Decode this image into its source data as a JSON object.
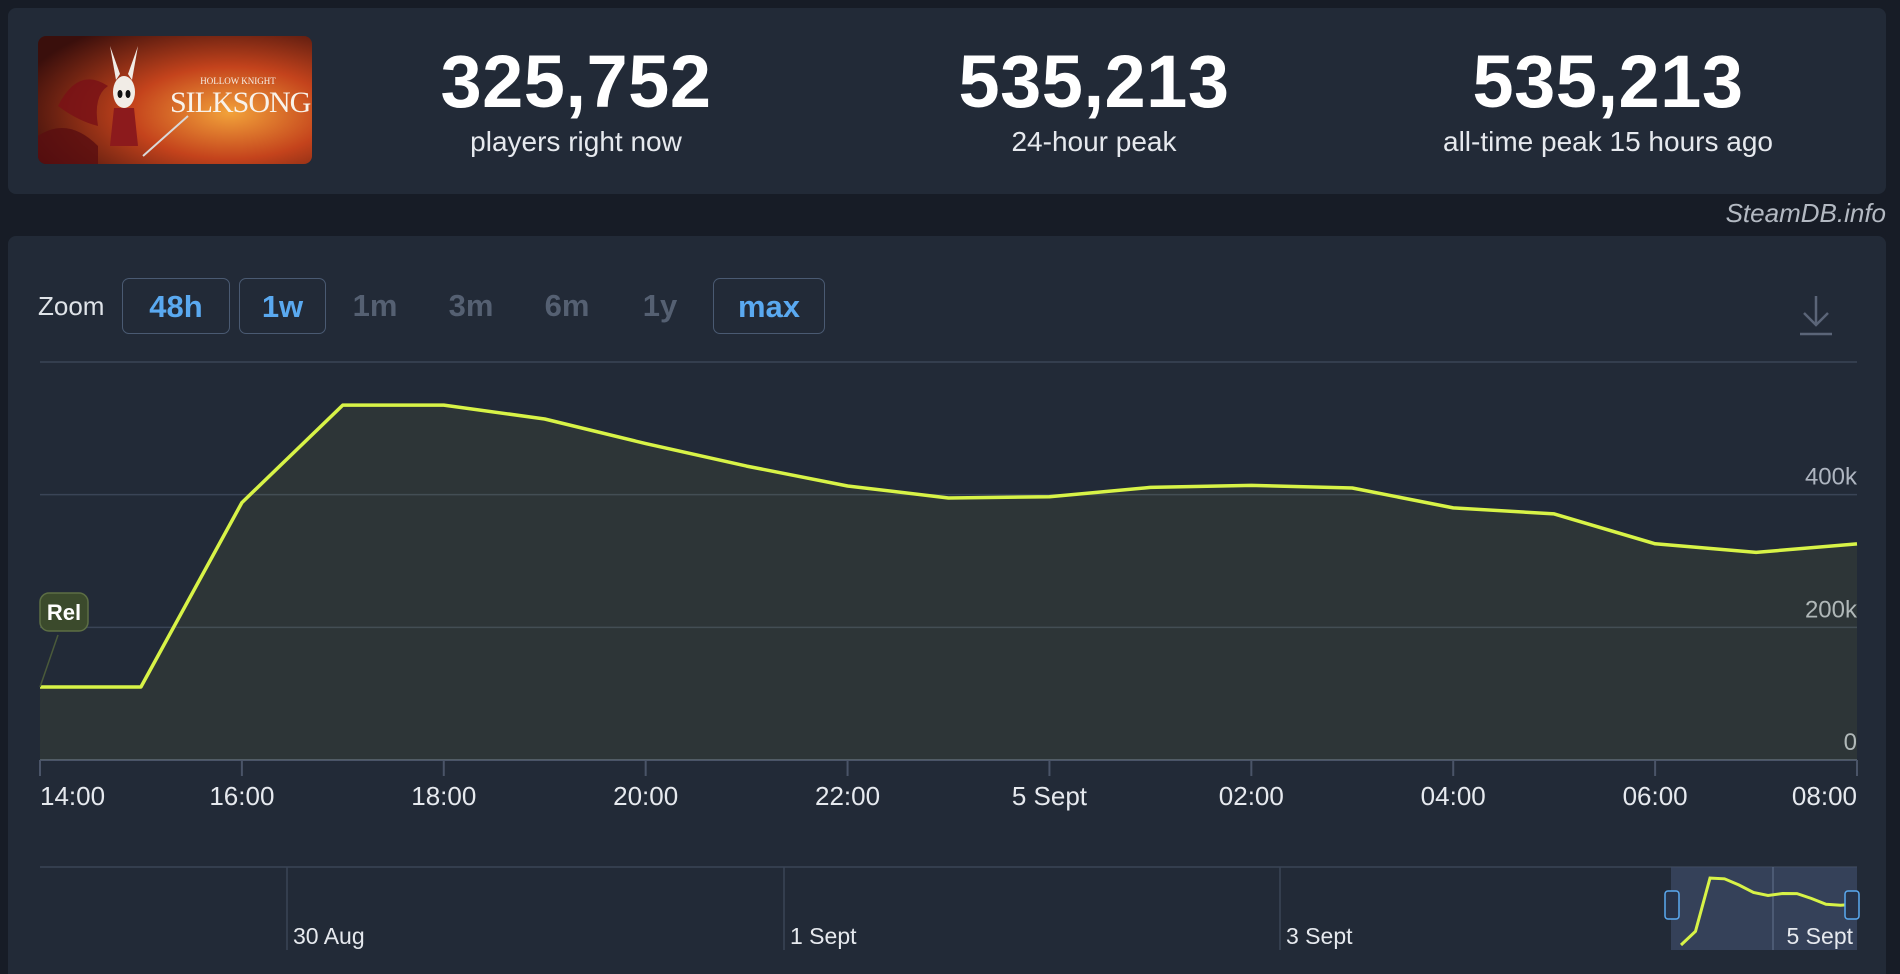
{
  "game": {
    "logo_title": "SILKSONG",
    "logo_subtitle": "HOLLOW KNIGHT"
  },
  "stats": [
    {
      "value": "325,752",
      "label": "players right now"
    },
    {
      "value": "535,213",
      "label": "24-hour peak"
    },
    {
      "value": "535,213",
      "label": "all-time peak 15 hours ago"
    }
  ],
  "credit": "SteamDB.info",
  "zoom": {
    "label": "Zoom",
    "buttons": [
      {
        "label": "48h",
        "active": true
      },
      {
        "label": "1w",
        "active": true
      },
      {
        "label": "1m",
        "active": false
      },
      {
        "label": "3m",
        "active": false
      },
      {
        "label": "6m",
        "active": false
      },
      {
        "label": "1y",
        "active": false
      },
      {
        "label": "max",
        "active": true
      }
    ]
  },
  "icons": {
    "download": "download-icon"
  },
  "colors": {
    "line": "#d8f347",
    "accent": "#5aa9f0",
    "background": "#171c26",
    "panel": "#222a37"
  },
  "chart_data": {
    "type": "line",
    "x": [
      "14:00",
      "15:00",
      "16:00",
      "17:00",
      "18:00",
      "19:00",
      "20:00",
      "21:00",
      "22:00",
      "23:00",
      "5 Sept",
      "01:00",
      "02:00",
      "03:00",
      "04:00",
      "05:00",
      "06:00",
      "07:00",
      "08:00"
    ],
    "series": [
      {
        "values": [
          110000,
          110000,
          388000,
          535000,
          535000,
          514000,
          477000,
          443000,
          413000,
          395000,
          397000,
          411000,
          414000,
          410000,
          380000,
          371000,
          326000,
          313000,
          325752
        ]
      }
    ],
    "xticks": [
      "14:00",
      "16:00",
      "18:00",
      "20:00",
      "22:00",
      "5 Sept",
      "02:00",
      "04:00",
      "06:00",
      "08:00"
    ],
    "yticks": [
      {
        "value": 0,
        "label": "0"
      },
      {
        "value": 200000,
        "label": "200k"
      },
      {
        "value": 400000,
        "label": "400k"
      }
    ],
    "ylim": [
      0,
      600000
    ],
    "grid": true,
    "annotation": {
      "label": "Rel",
      "x": "14:00"
    },
    "navigator": {
      "labels": [
        "30 Aug",
        "1 Sept",
        "3 Sept",
        "5 Sept"
      ],
      "range_values": [
        0,
        110000,
        535000,
        530000,
        480000,
        420000,
        396000,
        412000,
        411000,
        372000,
        326000,
        318000,
        325752
      ]
    }
  }
}
